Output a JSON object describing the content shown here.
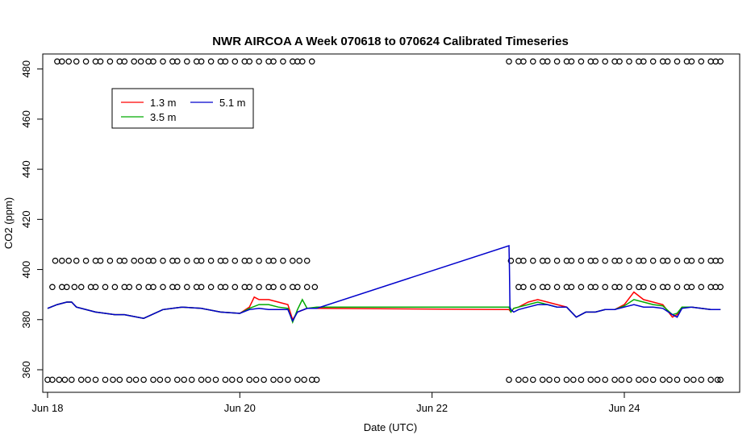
{
  "chart_data": {
    "type": "line",
    "title": "NWR AIRCOA A  Week 070618 to 070624  Calibrated Timeseries",
    "xlabel": "Date (UTC)",
    "ylabel": "CO2 (ppm)",
    "xlim": [
      -0.05,
      7.2
    ],
    "ylim": [
      351,
      486
    ],
    "x_ticks": [
      {
        "value": 0,
        "label": "Jun 18"
      },
      {
        "value": 2,
        "label": "Jun 20"
      },
      {
        "value": 4,
        "label": "Jun 22"
      },
      {
        "value": 6,
        "label": "Jun 24"
      }
    ],
    "y_ticks": [
      360,
      380,
      400,
      420,
      440,
      460,
      480
    ],
    "x_units": "days since Jun 18 00:00 UTC",
    "legend": {
      "placement": "top-left",
      "entries": [
        {
          "label": "1.3 m",
          "color": "#ff0000"
        },
        {
          "label": "5.1 m",
          "color": "#0000cc"
        },
        {
          "label": "3.5 m",
          "color": "#00aa00"
        }
      ]
    },
    "series": [
      {
        "name": "1.3 m",
        "color": "#ff0000",
        "x": [
          0.0,
          0.1,
          0.2,
          0.25,
          0.3,
          0.5,
          0.7,
          0.8,
          1.0,
          1.2,
          1.4,
          1.6,
          1.8,
          2.0,
          2.1,
          2.15,
          2.2,
          2.3,
          2.4,
          2.5,
          2.55,
          2.6,
          2.7,
          2.8,
          4.8,
          4.82,
          4.85,
          4.9,
          5.0,
          5.1,
          5.2,
          5.3,
          5.4,
          5.5,
          5.6,
          5.7,
          5.8,
          5.9,
          6.0,
          6.1,
          6.2,
          6.3,
          6.4,
          6.5,
          6.55,
          6.6,
          6.7,
          6.8,
          6.9,
          7.0
        ],
        "y": [
          384.5,
          386,
          387,
          387,
          385,
          383,
          382,
          382,
          380.5,
          384,
          385,
          384.5,
          383,
          382.5,
          385,
          389,
          388,
          388,
          387,
          386,
          380,
          383,
          384.5,
          384.5,
          384,
          383,
          384.5,
          385,
          387,
          388,
          387,
          386,
          385,
          381,
          383,
          383,
          384,
          384,
          386,
          391,
          388,
          387,
          386,
          381,
          382,
          385,
          385,
          384.5,
          384,
          384
        ]
      },
      {
        "name": "3.5 m",
        "color": "#00aa00",
        "x": [
          0.0,
          0.1,
          0.2,
          0.25,
          0.3,
          0.5,
          0.7,
          0.8,
          1.0,
          1.2,
          1.4,
          1.6,
          1.8,
          2.0,
          2.1,
          2.2,
          2.3,
          2.4,
          2.5,
          2.55,
          2.6,
          2.65,
          2.7,
          2.8,
          4.8,
          4.82,
          4.85,
          4.9,
          5.0,
          5.1,
          5.2,
          5.3,
          5.4,
          5.5,
          5.6,
          5.7,
          5.8,
          5.9,
          6.0,
          6.1,
          6.2,
          6.3,
          6.4,
          6.5,
          6.55,
          6.6,
          6.7,
          6.8,
          6.9,
          7.0
        ],
        "y": [
          384.5,
          386,
          387,
          387,
          385,
          383,
          382,
          382,
          380.5,
          384,
          385,
          384.5,
          383,
          382.5,
          384.5,
          386,
          386,
          385,
          384.5,
          379,
          384,
          388,
          384.5,
          385,
          385,
          383,
          384.5,
          385,
          386,
          387,
          386,
          385,
          385,
          381,
          383,
          383,
          384,
          384,
          385.5,
          388,
          387,
          386,
          385.5,
          382,
          382.5,
          385,
          385,
          384.5,
          384,
          384
        ]
      },
      {
        "name": "5.1 m",
        "color": "#0000cc",
        "x": [
          0.0,
          0.1,
          0.2,
          0.25,
          0.3,
          0.5,
          0.7,
          0.8,
          1.0,
          1.2,
          1.4,
          1.6,
          1.8,
          2.0,
          2.1,
          2.2,
          2.3,
          2.4,
          2.5,
          2.55,
          2.6,
          2.7,
          2.8,
          4.8,
          4.805,
          4.81,
          4.82,
          4.85,
          4.9,
          5.0,
          5.1,
          5.2,
          5.3,
          5.4,
          5.5,
          5.6,
          5.7,
          5.8,
          5.9,
          6.0,
          6.1,
          6.2,
          6.3,
          6.4,
          6.5,
          6.55,
          6.6,
          6.7,
          6.8,
          6.9,
          7.0
        ],
        "y": [
          384.5,
          386,
          387,
          387,
          385,
          383,
          382,
          382,
          380.5,
          384,
          385,
          384.5,
          383,
          382.5,
          384,
          384.5,
          384,
          384,
          384,
          379.5,
          383,
          384.5,
          384.5,
          409.5,
          400,
          385,
          384,
          383,
          384,
          385,
          386,
          386,
          385,
          385,
          381,
          383,
          383,
          384,
          384,
          385,
          386,
          385,
          385,
          384.5,
          382,
          381,
          384.5,
          385,
          384.5,
          384,
          384
        ]
      }
    ],
    "marker_rows": [
      {
        "label": "flag-row-483",
        "y": 483,
        "symbol": "o",
        "x": [
          0.1,
          0.15,
          0.22,
          0.3,
          0.4,
          0.5,
          0.55,
          0.65,
          0.75,
          0.8,
          0.9,
          0.97,
          1.05,
          1.1,
          1.2,
          1.3,
          1.35,
          1.45,
          1.55,
          1.6,
          1.7,
          1.8,
          1.85,
          1.95,
          2.05,
          2.1,
          2.2,
          2.3,
          2.35,
          2.45,
          2.55,
          2.6,
          2.65,
          2.75,
          4.8,
          4.9,
          4.95,
          5.05,
          5.15,
          5.2,
          5.3,
          5.4,
          5.45,
          5.55,
          5.65,
          5.7,
          5.8,
          5.9,
          5.95,
          6.05,
          6.15,
          6.2,
          6.3,
          6.4,
          6.45,
          6.55,
          6.65,
          6.7,
          6.8,
          6.9,
          6.95,
          7.0
        ]
      },
      {
        "label": "flag-row-403.5",
        "y": 403.5,
        "symbol": "o",
        "x": [
          0.08,
          0.15,
          0.22,
          0.3,
          0.4,
          0.5,
          0.55,
          0.65,
          0.75,
          0.8,
          0.9,
          0.97,
          1.05,
          1.1,
          1.2,
          1.3,
          1.35,
          1.45,
          1.55,
          1.6,
          1.7,
          1.8,
          1.85,
          1.95,
          2.05,
          2.1,
          2.2,
          2.3,
          2.35,
          2.45,
          2.55,
          2.62,
          2.7,
          4.82,
          4.9,
          4.95,
          5.05,
          5.15,
          5.2,
          5.3,
          5.4,
          5.45,
          5.55,
          5.65,
          5.7,
          5.8,
          5.9,
          5.95,
          6.05,
          6.15,
          6.2,
          6.3,
          6.4,
          6.45,
          6.55,
          6.65,
          6.7,
          6.8,
          6.9,
          6.95,
          7.0
        ]
      },
      {
        "label": "flag-row-393",
        "y": 393,
        "symbol": "o",
        "x": [
          0.05,
          0.15,
          0.2,
          0.28,
          0.35,
          0.45,
          0.5,
          0.6,
          0.7,
          0.8,
          0.85,
          0.95,
          1.05,
          1.1,
          1.2,
          1.3,
          1.35,
          1.45,
          1.55,
          1.6,
          1.7,
          1.8,
          1.85,
          1.95,
          2.05,
          2.1,
          2.2,
          2.3,
          2.35,
          2.45,
          2.55,
          2.6,
          2.7,
          2.78,
          4.9,
          4.95,
          5.05,
          5.15,
          5.2,
          5.3,
          5.4,
          5.45,
          5.55,
          5.65,
          5.7,
          5.8,
          5.9,
          5.95,
          6.05,
          6.15,
          6.2,
          6.3,
          6.4,
          6.45,
          6.55,
          6.65,
          6.7,
          6.8,
          6.9,
          6.95,
          7.0
        ]
      },
      {
        "label": "flag-row-356",
        "y": 356,
        "symbol": "o",
        "x": [
          0.0,
          0.05,
          0.12,
          0.18,
          0.25,
          0.35,
          0.42,
          0.5,
          0.6,
          0.68,
          0.75,
          0.85,
          0.92,
          1.0,
          1.1,
          1.17,
          1.25,
          1.35,
          1.42,
          1.5,
          1.6,
          1.67,
          1.75,
          1.85,
          1.92,
          2.0,
          2.1,
          2.17,
          2.25,
          2.35,
          2.42,
          2.5,
          2.6,
          2.67,
          2.75,
          2.8,
          4.8,
          4.9,
          4.97,
          5.05,
          5.15,
          5.22,
          5.3,
          5.4,
          5.47,
          5.55,
          5.65,
          5.72,
          5.8,
          5.9,
          5.97,
          6.05,
          6.15,
          6.22,
          6.3,
          6.4,
          6.47,
          6.55,
          6.65,
          6.72,
          6.8,
          6.9,
          6.97,
          7.0
        ]
      }
    ]
  }
}
